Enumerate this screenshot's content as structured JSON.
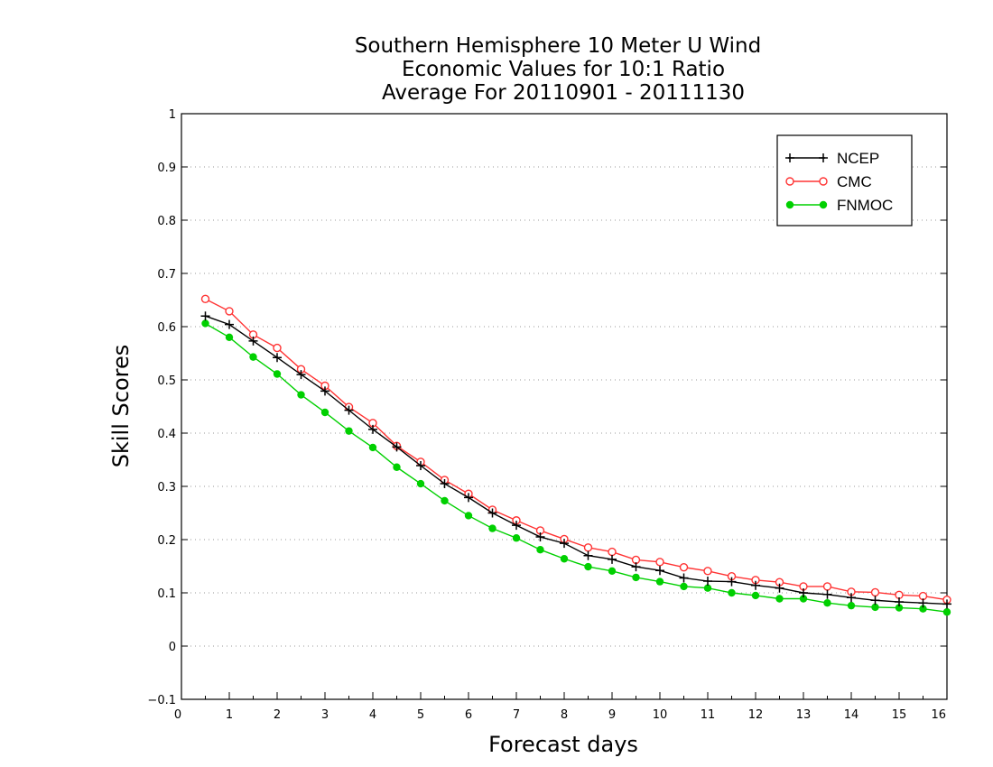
{
  "chart_data": {
    "type": "line",
    "title": [
      "Southern Hemisphere 10 Meter U Wind",
      "Economic Values for 10:1 Ratio",
      "Average For 20110901 - 20111130"
    ],
    "xlabel": "Forecast days",
    "ylabel": "Skill Scores",
    "xlim": [
      0,
      16
    ],
    "ylim": [
      -0.1,
      1
    ],
    "xticks": [
      "0",
      "1",
      "2",
      "3",
      "4",
      "5",
      "6",
      "7",
      "8",
      "9",
      "10",
      "11",
      "12",
      "13",
      "14",
      "15",
      "16"
    ],
    "yticks": [
      "−0.1",
      "0",
      "0.1",
      "0.2",
      "0.3",
      "0.4",
      "0.5",
      "0.6",
      "0.7",
      "0.8",
      "0.9",
      "1"
    ],
    "grid": true,
    "legend_position": "top-right",
    "x": [
      0.5,
      1,
      1.5,
      2,
      2.5,
      3,
      3.5,
      4,
      4.5,
      5,
      5.5,
      6,
      6.5,
      7,
      7.5,
      8,
      8.5,
      9,
      9.5,
      10,
      10.5,
      11,
      11.5,
      12,
      12.5,
      13,
      13.5,
      14,
      14.5,
      15,
      15.5,
      16
    ],
    "series": [
      {
        "name": "NCEP",
        "color": "#000000",
        "marker": "plus",
        "values": [
          0.62,
          0.604,
          0.573,
          0.542,
          0.51,
          0.479,
          0.443,
          0.407,
          0.374,
          0.339,
          0.305,
          0.279,
          0.25,
          0.227,
          0.205,
          0.193,
          0.17,
          0.163,
          0.149,
          0.142,
          0.128,
          0.122,
          0.121,
          0.114,
          0.109,
          0.1,
          0.097,
          0.091,
          0.086,
          0.083,
          0.081,
          0.079
        ]
      },
      {
        "name": "CMC",
        "color": "#ff3333",
        "marker": "open-circle",
        "values": [
          0.652,
          0.629,
          0.585,
          0.56,
          0.52,
          0.489,
          0.449,
          0.419,
          0.376,
          0.346,
          0.312,
          0.286,
          0.256,
          0.236,
          0.217,
          0.201,
          0.185,
          0.177,
          0.162,
          0.158,
          0.148,
          0.141,
          0.131,
          0.124,
          0.12,
          0.112,
          0.112,
          0.102,
          0.101,
          0.096,
          0.094,
          0.087
        ]
      },
      {
        "name": "FNMOC",
        "color": "#00d000",
        "marker": "filled-circle",
        "values": [
          0.606,
          0.58,
          0.543,
          0.511,
          0.472,
          0.439,
          0.404,
          0.373,
          0.336,
          0.305,
          0.273,
          0.245,
          0.221,
          0.203,
          0.181,
          0.164,
          0.149,
          0.141,
          0.129,
          0.121,
          0.112,
          0.109,
          0.1,
          0.095,
          0.089,
          0.089,
          0.081,
          0.076,
          0.073,
          0.072,
          0.07,
          0.064
        ]
      }
    ]
  }
}
